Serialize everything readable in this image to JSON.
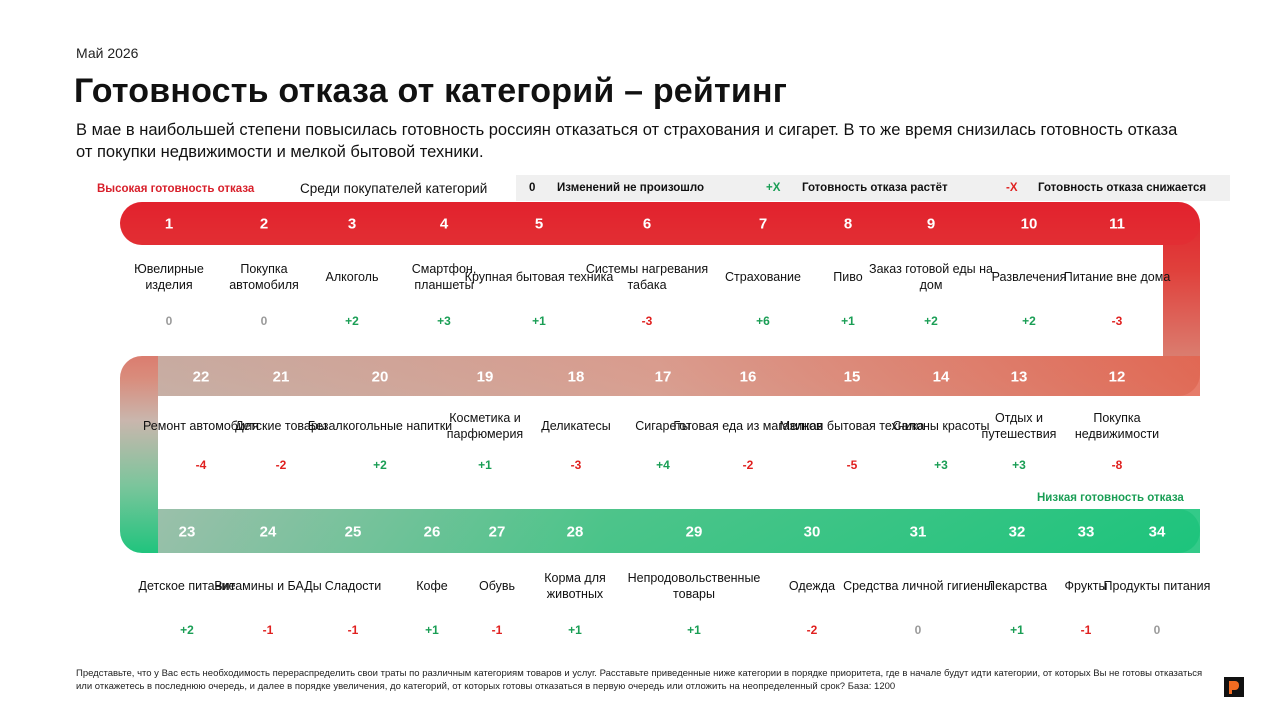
{
  "header": {
    "date": "Май 2026",
    "title": "Готовность отказа от категорий – рейтинг",
    "subtitle": "В мае в наибольшей степени повысилась готовность россиян отказаться от страхования и сигарет. В то же время снизилась готовность отказа от покупки недвижимости и мелкой бытовой техники."
  },
  "labels": {
    "high": "Высокая готовность отказа",
    "low": "Низкая готовность отказа",
    "among": "Среди покупателей категорий"
  },
  "legend": {
    "zero_symbol": "0",
    "zero_text": "Изменений не произошло",
    "plus_symbol": "+X",
    "plus_text": "Готовность отказа растёт",
    "minus_symbol": "-X",
    "minus_text": "Готовность отказа снижается"
  },
  "colors": {
    "high": "#d81f2a",
    "mid": "#c8b9b0",
    "low": "#1fc07a",
    "positive": "#1a9e55",
    "negative": "#e0201f",
    "neutral": "#9a9a9a"
  },
  "chart_data": {
    "type": "table",
    "rows": [
      {
        "direction": "ltr",
        "items": [
          {
            "rank": 1,
            "name": "Ювелирные изделия",
            "change": "0"
          },
          {
            "rank": 2,
            "name": "Покупка автомобиля",
            "change": "0"
          },
          {
            "rank": 3,
            "name": "Алкоголь",
            "change": "+2"
          },
          {
            "rank": 4,
            "name": "Смартфон, планшеты",
            "change": "+3"
          },
          {
            "rank": 5,
            "name": "Крупная бытовая техника",
            "change": "+1"
          },
          {
            "rank": 6,
            "name": "Системы нагревания табака",
            "change": "-3"
          },
          {
            "rank": 7,
            "name": "Страхование",
            "change": "+6"
          },
          {
            "rank": 8,
            "name": "Пиво",
            "change": "+1"
          },
          {
            "rank": 9,
            "name": "Заказ готовой еды на дом",
            "change": "+2"
          },
          {
            "rank": 10,
            "name": "Развлечения",
            "change": "+2"
          },
          {
            "rank": 11,
            "name": "Питание вне дома",
            "change": "-3"
          }
        ]
      },
      {
        "direction": "rtl",
        "items": [
          {
            "rank": 22,
            "name": "Ремонт автомобиля",
            "change": "-4"
          },
          {
            "rank": 21,
            "name": "Детские товары",
            "change": "-2"
          },
          {
            "rank": 20,
            "name": "Безалкогольные напитки",
            "change": "+2"
          },
          {
            "rank": 19,
            "name": "Косметика и парфюмерия",
            "change": "+1"
          },
          {
            "rank": 18,
            "name": "Деликатесы",
            "change": "-3"
          },
          {
            "rank": 17,
            "name": "Сигареты",
            "change": "+4"
          },
          {
            "rank": 16,
            "name": "Готовая еда из магазинов",
            "change": "-2"
          },
          {
            "rank": 15,
            "name": "Мелкая бытовая техника",
            "change": "-5"
          },
          {
            "rank": 14,
            "name": "Салоны красоты",
            "change": "+3"
          },
          {
            "rank": 13,
            "name": "Отдых и путешествия",
            "change": "+3"
          },
          {
            "rank": 12,
            "name": "Покупка недвижимости",
            "change": "-8"
          }
        ]
      },
      {
        "direction": "ltr",
        "items": [
          {
            "rank": 23,
            "name": "Детское питание",
            "change": "+2"
          },
          {
            "rank": 24,
            "name": "Витамины и БАДы",
            "change": "-1"
          },
          {
            "rank": 25,
            "name": "Сладости",
            "change": "-1"
          },
          {
            "rank": 26,
            "name": "Кофе",
            "change": "+1"
          },
          {
            "rank": 27,
            "name": "Обувь",
            "change": "-1"
          },
          {
            "rank": 28,
            "name": "Корма для животных",
            "change": "+1"
          },
          {
            "rank": 29,
            "name": "Непродовольственные товары",
            "change": "+1"
          },
          {
            "rank": 30,
            "name": "Одежда",
            "change": "-2"
          },
          {
            "rank": 31,
            "name": "Средства личной гигиены",
            "change": "0"
          },
          {
            "rank": 32,
            "name": "Лекарства",
            "change": "+1"
          },
          {
            "rank": 33,
            "name": "Фрукты",
            "change": "-1"
          },
          {
            "rank": 34,
            "name": "Продукты питания",
            "change": "0"
          }
        ]
      }
    ]
  },
  "footnote": "Представьте, что у Вас есть необходимость перераспределить свои траты по различным категориям товаров и услуг. Расставьте приведенные ниже категории в порядке приоритета, где в начале будут идти категории, от которых Вы не готовы отказаться или откажетесь в последнюю очередь, и далее в порядке увеличения, до категорий, от которых готовы отказаться в первую очередь или отложить на неопределенный срок? База: 1200"
}
